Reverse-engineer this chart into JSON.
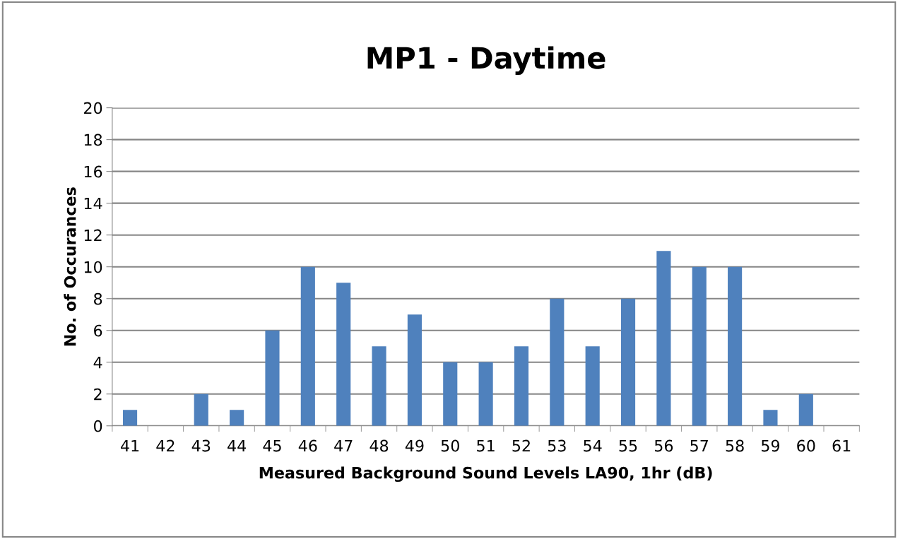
{
  "chart_data": {
    "type": "bar",
    "title": "MP1 - Daytime",
    "xlabel": "Measured Background Sound Levels LA90, 1hr (dB)",
    "ylabel": "No. of Occurances",
    "categories": [
      "41",
      "42",
      "43",
      "44",
      "45",
      "46",
      "47",
      "48",
      "49",
      "50",
      "51",
      "52",
      "53",
      "54",
      "55",
      "56",
      "57",
      "58",
      "59",
      "60",
      "61"
    ],
    "series": [
      {
        "color": "#4f81bd",
        "values": [
          1,
          0,
          2,
          1,
          6,
          10,
          9,
          5,
          7,
          4,
          4,
          5,
          8,
          5,
          8,
          11,
          10,
          10,
          1,
          2,
          0
        ]
      }
    ],
    "ylim": [
      0,
      20
    ],
    "yticks": [
      0,
      2,
      4,
      6,
      8,
      10,
      12,
      14,
      16,
      18,
      20
    ],
    "grid": "y",
    "legend": false
  }
}
